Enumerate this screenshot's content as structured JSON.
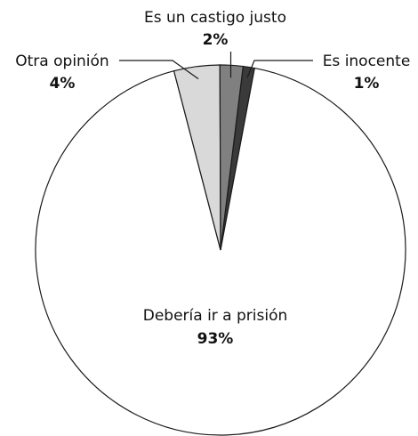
{
  "chart_data": {
    "type": "pie",
    "slices": [
      {
        "label": "Es inocente",
        "value": 1,
        "value_label": "1%",
        "color": "#3a3a3a"
      },
      {
        "label": "Debería ir a prisión",
        "value": 93,
        "value_label": "93%",
        "color": "#ffffff"
      },
      {
        "label": "Otra opinión",
        "value": 4,
        "value_label": "4%",
        "color": "#d9d9d9"
      },
      {
        "label": "Es un castigo justo",
        "value": 2,
        "value_label": "2%",
        "color": "#808080"
      }
    ],
    "start_angle": "top, clockwise"
  }
}
